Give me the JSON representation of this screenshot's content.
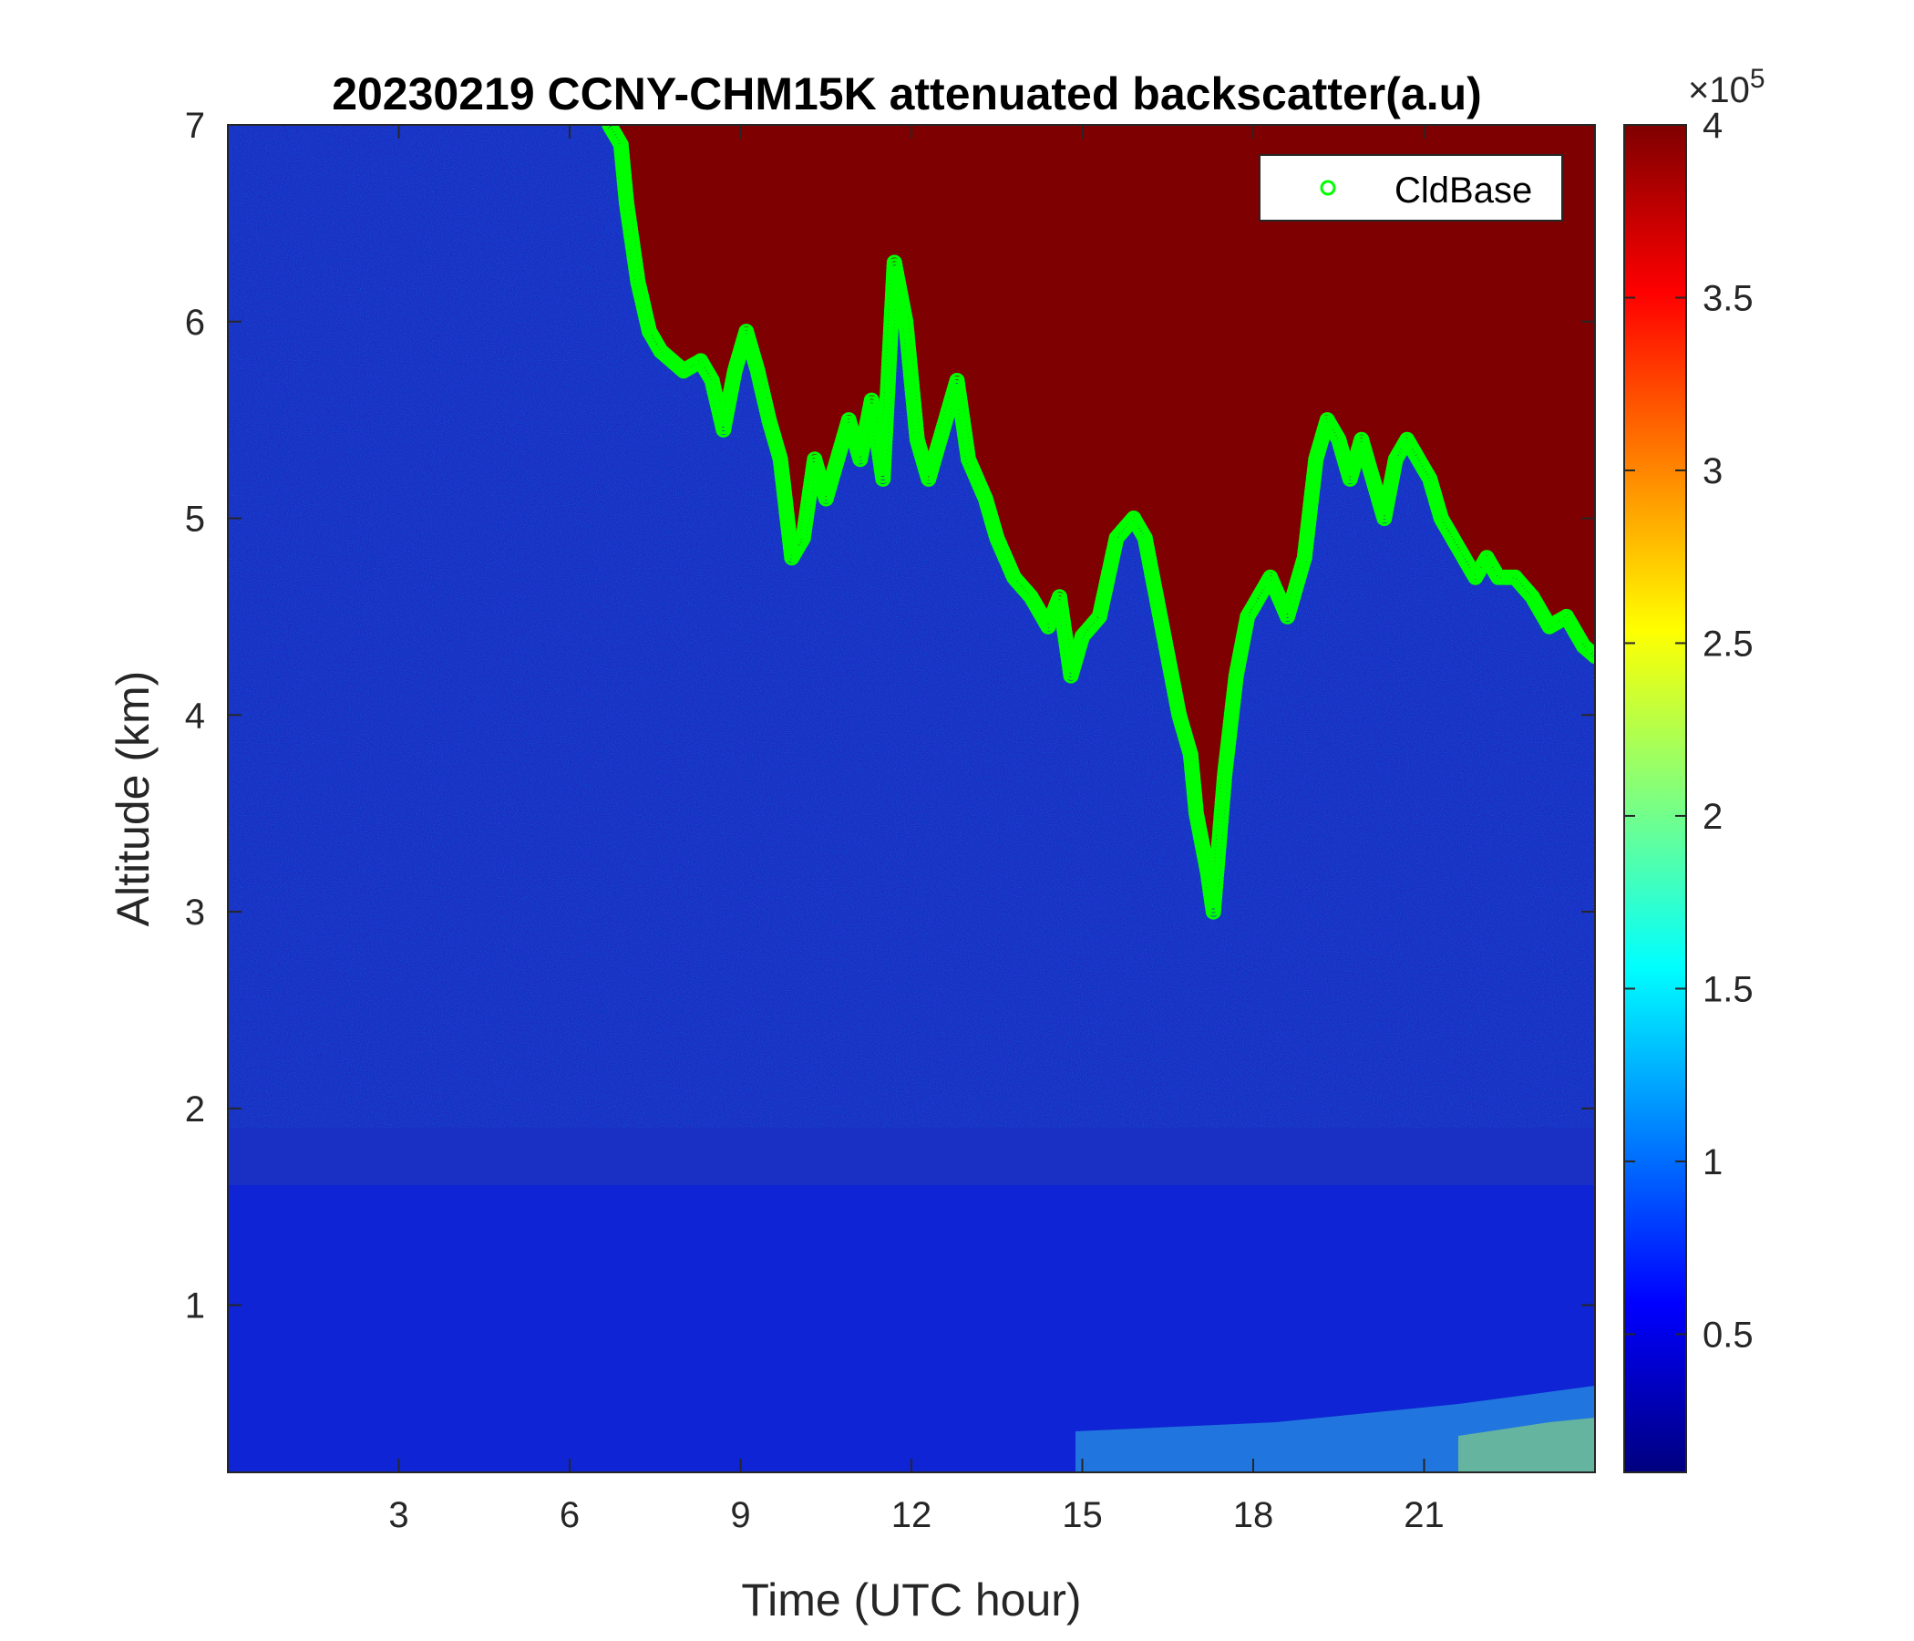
{
  "chart_data": {
    "type": "heatmap",
    "title": "20230219 CCNY-CHM15K attenuated backscatter(a.u)",
    "xlabel": "Time (UTC hour)",
    "ylabel": "Altitude (km)",
    "xlim": [
      0,
      24
    ],
    "ylim": [
      0.15,
      7
    ],
    "xticks": [
      3,
      6,
      9,
      12,
      15,
      18,
      21
    ],
    "xtick_labels": [
      "3",
      "6",
      "9",
      "12",
      "15",
      "18",
      "21"
    ],
    "yticks": [
      1,
      2,
      3,
      4,
      5,
      6,
      7
    ],
    "ytick_labels": [
      "1",
      "2",
      "3",
      "4",
      "5",
      "6",
      "7"
    ],
    "colorbar": {
      "colormap": "jet",
      "range": [
        10000,
        400000
      ],
      "ticks": [
        50000,
        100000,
        150000,
        200000,
        250000,
        300000,
        350000,
        400000
      ],
      "tick_labels": [
        "0.5",
        "1",
        "1.5",
        "2",
        "2.5",
        "3",
        "3.5",
        "4"
      ],
      "exponent_label": "×10",
      "exponent_power": "5"
    },
    "legend": {
      "entries": [
        "CldBase"
      ],
      "position": "top-right"
    },
    "series": [
      {
        "name": "CldBase",
        "marker": "circle",
        "color": "#00ff00",
        "points": [
          [
            6.7,
            7.0
          ],
          [
            6.9,
            6.9
          ],
          [
            7.0,
            6.6
          ],
          [
            7.2,
            6.2
          ],
          [
            7.4,
            5.95
          ],
          [
            7.6,
            5.85
          ],
          [
            7.8,
            5.8
          ],
          [
            8.0,
            5.75
          ],
          [
            8.3,
            5.8
          ],
          [
            8.5,
            5.7
          ],
          [
            8.7,
            5.45
          ],
          [
            8.9,
            5.75
          ],
          [
            9.1,
            5.95
          ],
          [
            9.3,
            5.75
          ],
          [
            9.5,
            5.5
          ],
          [
            9.7,
            5.3
          ],
          [
            9.9,
            4.8
          ],
          [
            10.1,
            4.9
          ],
          [
            10.3,
            5.3
          ],
          [
            10.5,
            5.1
          ],
          [
            10.7,
            5.3
          ],
          [
            10.9,
            5.5
          ],
          [
            11.1,
            5.3
          ],
          [
            11.3,
            5.6
          ],
          [
            11.5,
            5.2
          ],
          [
            11.7,
            6.3
          ],
          [
            11.9,
            6.0
          ],
          [
            12.1,
            5.4
          ],
          [
            12.3,
            5.2
          ],
          [
            12.5,
            5.4
          ],
          [
            12.8,
            5.7
          ],
          [
            13.0,
            5.3
          ],
          [
            13.3,
            5.1
          ],
          [
            13.5,
            4.9
          ],
          [
            13.8,
            4.7
          ],
          [
            14.1,
            4.6
          ],
          [
            14.4,
            4.45
          ],
          [
            14.6,
            4.6
          ],
          [
            14.8,
            4.2
          ],
          [
            15.0,
            4.4
          ],
          [
            15.3,
            4.5
          ],
          [
            15.6,
            4.9
          ],
          [
            15.9,
            5.0
          ],
          [
            16.1,
            4.9
          ],
          [
            16.3,
            4.6
          ],
          [
            16.5,
            4.3
          ],
          [
            16.7,
            4.0
          ],
          [
            16.9,
            3.8
          ],
          [
            17.0,
            3.5
          ],
          [
            17.2,
            3.2
          ],
          [
            17.3,
            3.0
          ],
          [
            17.5,
            3.7
          ],
          [
            17.7,
            4.2
          ],
          [
            17.9,
            4.5
          ],
          [
            18.1,
            4.6
          ],
          [
            18.3,
            4.7
          ],
          [
            18.6,
            4.5
          ],
          [
            18.9,
            4.8
          ],
          [
            19.1,
            5.3
          ],
          [
            19.3,
            5.5
          ],
          [
            19.5,
            5.4
          ],
          [
            19.7,
            5.2
          ],
          [
            19.9,
            5.4
          ],
          [
            20.1,
            5.2
          ],
          [
            20.3,
            5.0
          ],
          [
            20.5,
            5.3
          ],
          [
            20.7,
            5.4
          ],
          [
            20.9,
            5.3
          ],
          [
            21.1,
            5.2
          ],
          [
            21.3,
            5.0
          ],
          [
            21.5,
            4.9
          ],
          [
            21.7,
            4.8
          ],
          [
            21.9,
            4.7
          ],
          [
            22.1,
            4.8
          ],
          [
            22.3,
            4.7
          ],
          [
            22.6,
            4.7
          ],
          [
            22.9,
            4.6
          ],
          [
            23.2,
            4.45
          ],
          [
            23.5,
            4.5
          ],
          [
            23.8,
            4.35
          ],
          [
            24.0,
            4.3
          ]
        ]
      }
    ]
  }
}
